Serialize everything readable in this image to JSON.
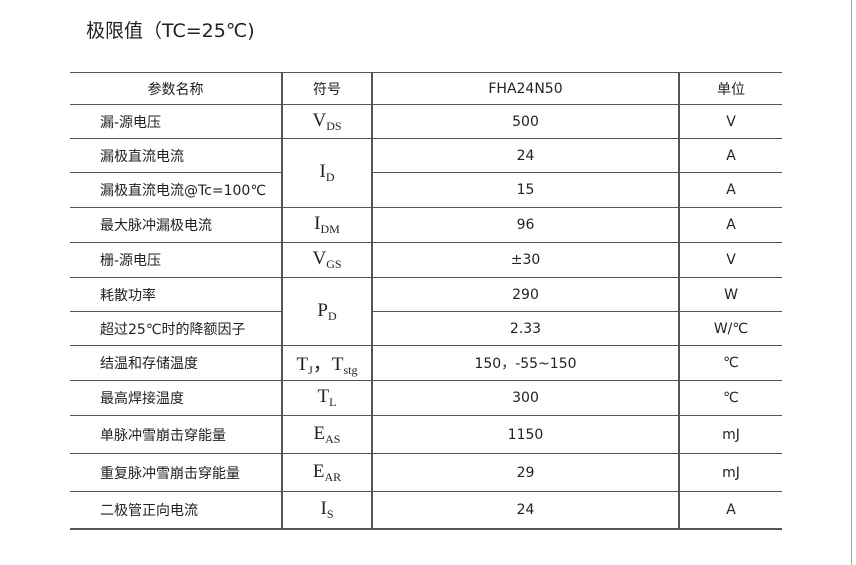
{
  "title": "极限值（TC=25℃)",
  "headers": [
    "参数名称",
    "符号",
    "FHA24N50",
    "单位"
  ],
  "rows": [
    {
      "param": "漏-源电压",
      "sym": "V",
      "sub": "DS",
      "value": "500",
      "unit": "V"
    },
    {
      "param": "漏极直流电流",
      "sym": "I",
      "sub": "D",
      "value": "24",
      "unit": "A"
    },
    {
      "param": "漏极直流电流@Tc=100℃",
      "value": "15",
      "unit": "A"
    },
    {
      "param": "最大脉冲漏极电流",
      "sym": "I",
      "sub": "DM",
      "value": "96",
      "unit": "A"
    },
    {
      "param": "栅-源电压",
      "sym": "V",
      "sub": "GS",
      "value": "±30",
      "unit": "V"
    },
    {
      "param": "耗散功率",
      "sym": "P",
      "sub": "D",
      "value": "290",
      "unit": "W"
    },
    {
      "param": "超过25℃时的降额因子",
      "value": "2.33",
      "unit": "W/℃"
    },
    {
      "param": "结温和存储温度",
      "sym": "T",
      "sub": "J",
      "sym2": "，T",
      "sub2": "stg",
      "value": "150，-55~150",
      "unit": "℃"
    },
    {
      "param": "最高焊接温度",
      "sym": "T",
      "sub": "L",
      "value": "300",
      "unit": "℃"
    },
    {
      "param": "单脉冲雪崩击穿能量",
      "sym": "E",
      "sub": "AS",
      "value": "1150",
      "unit": "mJ"
    },
    {
      "param": "重复脉冲雪崩击穿能量",
      "sym": "E",
      "sub": "AR",
      "value": "29",
      "unit": "mJ"
    },
    {
      "param": "二极管正向电流",
      "sym": "I",
      "sub": "S",
      "value": "24",
      "unit": "A"
    }
  ]
}
